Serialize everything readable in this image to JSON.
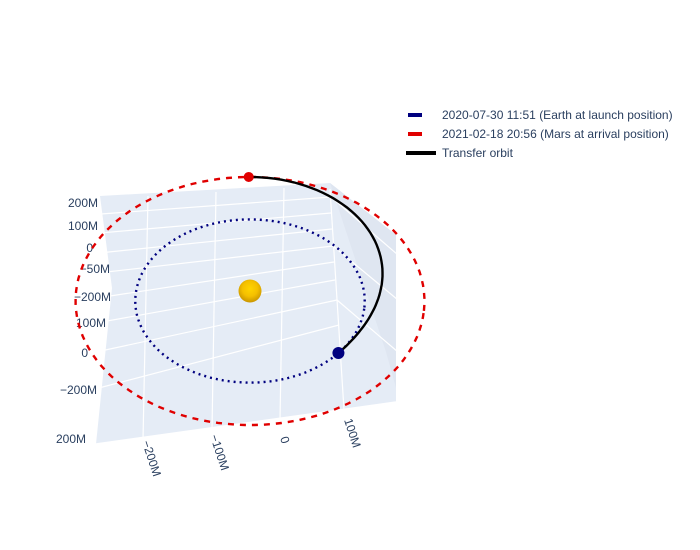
{
  "chart_data": {
    "type": "scatter3d",
    "title": "",
    "series": [
      {
        "name": "2020-07-30 11:51 (Earth at launch position)",
        "color": "#00007f",
        "dash": "dot",
        "orbit_radius": 150000000,
        "marker_angle_deg": -35
      },
      {
        "name": "2021-02-18 20:56 (Mars at arrival position)",
        "color": "#e00000",
        "dash": "dash",
        "orbit_radius": 228000000,
        "marker_angle_deg": 95
      },
      {
        "name": "Transfer orbit",
        "color": "#000000",
        "dash": "solid"
      }
    ],
    "sun": {
      "color": "#f5c000"
    },
    "x_ticks": [
      "200M",
      "100M",
      "0",
      "−50M",
      "−100M",
      "−200M"
    ],
    "y_ticks": [
      "−200M",
      "−100M",
      "0",
      "100M"
    ],
    "z_ticks": [
      "200M",
      "100M",
      "0",
      "−100M",
      "−200M"
    ],
    "grid": true,
    "legend_position": "top-right"
  }
}
